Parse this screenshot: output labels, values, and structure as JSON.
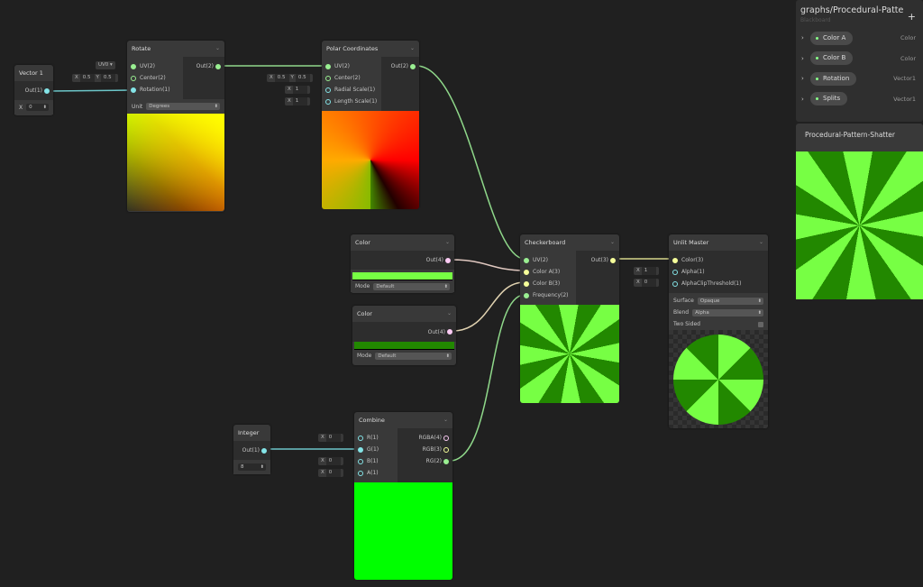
{
  "blackboard": {
    "title": "graphs/Procedural-Patte",
    "subtitle": "Blackboard",
    "add_label": "+",
    "properties": [
      {
        "name": "Color A",
        "type": "Color"
      },
      {
        "name": "Color B",
        "type": "Color"
      },
      {
        "name": "Rotation",
        "type": "Vector1"
      },
      {
        "name": "Splits",
        "type": "Vector1"
      }
    ]
  },
  "preview_window": {
    "title": "Procedural-Pattern-Shatter"
  },
  "vector1": {
    "title": "Vector 1",
    "out": "Out(1)",
    "x": "X",
    "value": "0"
  },
  "rotate": {
    "title": "Rotate",
    "inputs": [
      "UV(2)",
      "Center(2)",
      "Rotation(1)"
    ],
    "out": "Out(2)",
    "unit_label": "Unit",
    "unit": "Degrees",
    "uv_field": "UV0",
    "center_x": "0.5",
    "center_y": "0.5"
  },
  "polar": {
    "title": "Polar Coordinates",
    "inputs": [
      "UV(2)",
      "Center(2)",
      "Radial Scale(1)",
      "Length Scale(1)"
    ],
    "out": "Out(2)",
    "center_x": "0.5",
    "center_y": "0.5",
    "radial": "1",
    "length": "1"
  },
  "color1": {
    "title": "Color",
    "out": "Out(4)",
    "mode_label": "Mode",
    "mode": "Default",
    "swatch": "#77ff44"
  },
  "color2": {
    "title": "Color",
    "out": "Out(4)",
    "mode_label": "Mode",
    "mode": "Default",
    "swatch": "#228800"
  },
  "checker": {
    "title": "Checkerboard",
    "inputs": [
      "UV(2)",
      "Color A(3)",
      "Color B(3)",
      "Frequency(2)"
    ],
    "out": "Out(3)"
  },
  "master": {
    "title": "Unlit Master",
    "inputs": [
      "Color(3)",
      "Alpha(1)",
      "AlphaClipThreshold(1)"
    ],
    "alpha": "1",
    "clip": "0",
    "surface_label": "Surface",
    "surface": "Opaque",
    "blend_label": "Blend",
    "blend": "Alpha",
    "two_sided_label": "Two Sided"
  },
  "integer": {
    "title": "Integer",
    "out": "Out(1)",
    "value": "8"
  },
  "combine": {
    "title": "Combine",
    "inputs": [
      "R(1)",
      "G(1)",
      "B(1)",
      "A(1)"
    ],
    "outputs": [
      "RGBA(4)",
      "RGB(3)",
      "RG(2)"
    ],
    "r": "0",
    "b": "0",
    "a": "0"
  },
  "labels": {
    "x": "X",
    "y": "Y"
  },
  "colors": {
    "pattern_light": "#77ff44",
    "pattern_dark": "#228800",
    "combine_preview": "#00ff00"
  }
}
